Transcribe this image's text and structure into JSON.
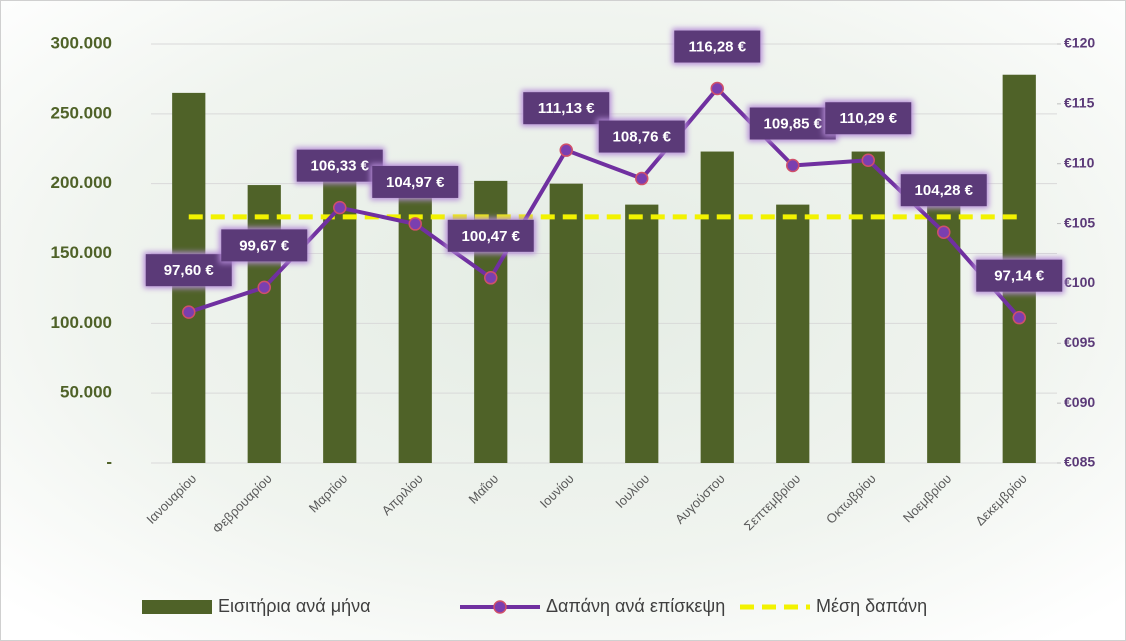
{
  "chart_data": {
    "type": "combo",
    "categories": [
      "Ιανουαρίου",
      "Φεβρουαρίου",
      "Μαρτίου",
      "Απριλίου",
      "Μαΐου",
      "Ιουνίου",
      "Ιουλίου",
      "Αυγούστου",
      "Σεπτεμβρίου",
      "Οκτωβρίου",
      "Νοεμβρίου",
      "Δεκεμβρίου"
    ],
    "series": [
      {
        "name": "Εισιτήρια ανά μήνα",
        "type": "bar",
        "axis": "y",
        "color": "#4f6228",
        "values": [
          265000,
          199000,
          220000,
          198000,
          202000,
          200000,
          185000,
          223000,
          185000,
          223000,
          190000,
          278000
        ]
      },
      {
        "name": "Δαπάνη ανά επίσκεψη",
        "type": "line",
        "axis": "y2",
        "color": "#7030a0",
        "values": [
          97.6,
          99.67,
          106.33,
          104.97,
          100.47,
          111.13,
          108.76,
          116.28,
          109.85,
          110.29,
          104.28,
          97.14
        ],
        "value_labels": [
          "97,60 €",
          "99,67 €",
          "106,33 €",
          "104,97 €",
          "100,47 €",
          "111,13 €",
          "108,76 €",
          "116,28 €",
          "109,85 €",
          "110,29 €",
          "104,28 €",
          "97,14 €"
        ]
      },
      {
        "name": "Μέση δαπάνη",
        "type": "line",
        "axis": "y2",
        "color": "#f2f200",
        "dashed": true,
        "values": [
          105.56,
          105.56,
          105.56,
          105.56,
          105.56,
          105.56,
          105.56,
          105.56,
          105.56,
          105.56,
          105.56,
          105.56
        ]
      }
    ],
    "ylim": [
      0,
      300000
    ],
    "yticks": [
      {
        "value": 0,
        "label": "-"
      },
      {
        "value": 50000,
        "label": "50.000"
      },
      {
        "value": 100000,
        "label": "100.000"
      },
      {
        "value": 150000,
        "label": "150.000"
      },
      {
        "value": 200000,
        "label": "200.000"
      },
      {
        "value": 250000,
        "label": "250.000"
      },
      {
        "value": 300000,
        "label": "300.000"
      }
    ],
    "y2lim": [
      85,
      120
    ],
    "y2ticks": [
      {
        "value": 85,
        "label": "€085"
      },
      {
        "value": 90,
        "label": "€090"
      },
      {
        "value": 95,
        "label": "€095"
      },
      {
        "value": 100,
        "label": "€100"
      },
      {
        "value": 105,
        "label": "€105"
      },
      {
        "value": 110,
        "label": "€110"
      },
      {
        "value": 115,
        "label": "€115"
      },
      {
        "value": 120,
        "label": "€120"
      }
    ],
    "grid": true,
    "legend": "bottom"
  }
}
